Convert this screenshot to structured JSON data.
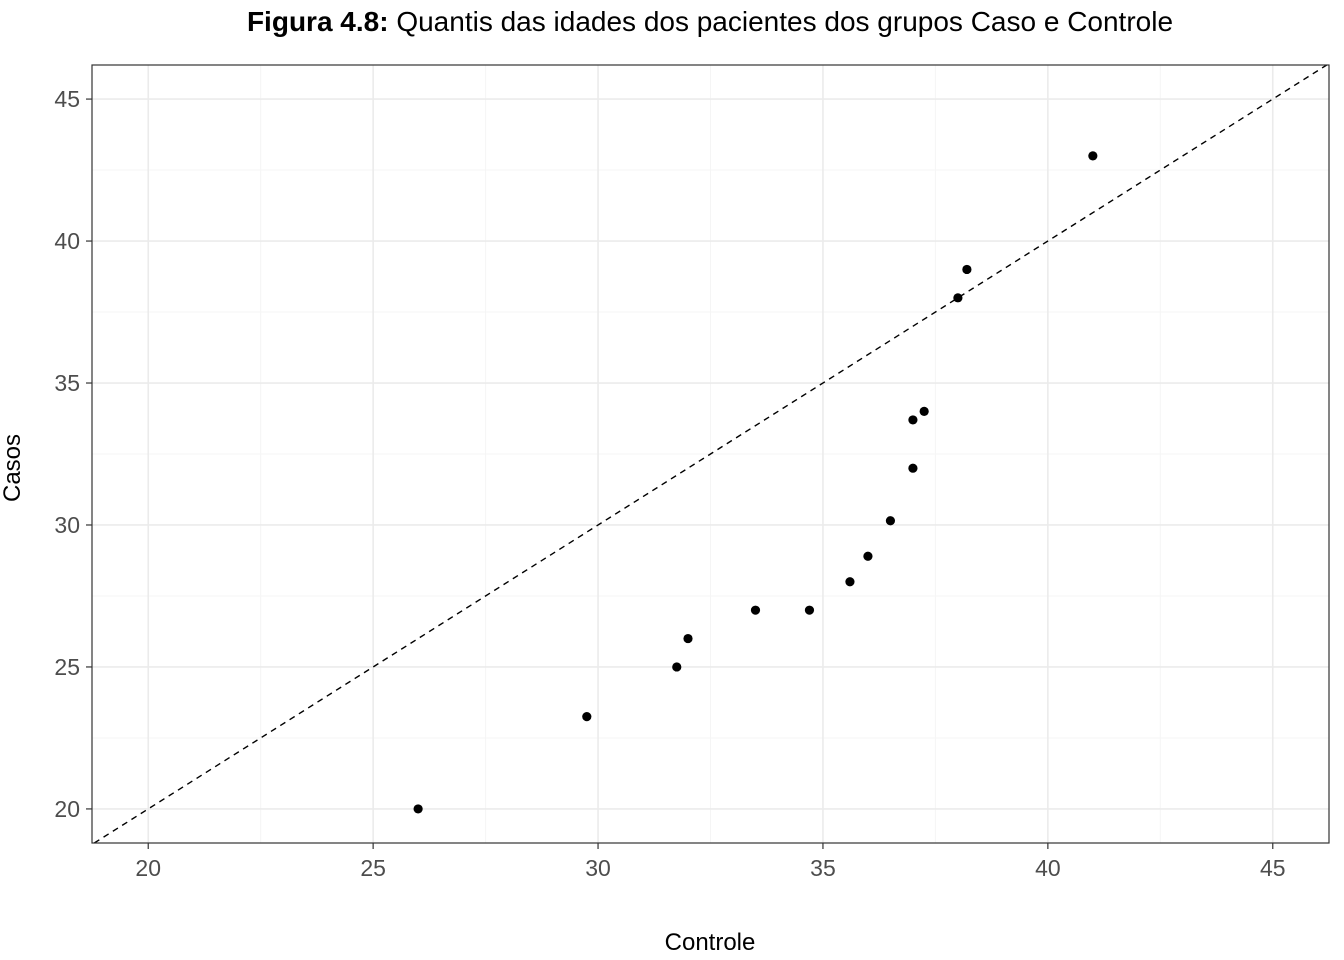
{
  "chart_data": {
    "type": "scatter",
    "title_prefix": "Figura 4.8:",
    "title_text": " Quantis das idades dos pacientes dos grupos Caso e Controle",
    "xlabel": "Controle",
    "ylabel": "Casos",
    "xlim": [
      18.75,
      46.25
    ],
    "ylim": [
      18.8,
      46.2
    ],
    "xticks": [
      20,
      25,
      30,
      35,
      40,
      45
    ],
    "xtick_labels": [
      "20",
      "25",
      "30",
      "35",
      "40",
      "45"
    ],
    "yticks": [
      20,
      25,
      30,
      35,
      40,
      45
    ],
    "ytick_labels": [
      "20",
      "25",
      "30",
      "35",
      "40",
      "45"
    ],
    "grid": true,
    "reference_line": "y = x (dashed)",
    "series": [
      {
        "x": [
          26.0,
          29.75,
          31.75,
          32.0,
          33.5,
          34.7,
          35.6,
          36.0,
          36.5,
          37.0,
          37.0,
          37.25,
          38.0,
          38.2,
          41.0
        ],
        "y": [
          20.0,
          23.25,
          25.0,
          26.0,
          27.0,
          27.0,
          28.0,
          28.9,
          30.15,
          32.0,
          33.7,
          34.0,
          38.0,
          39.0,
          43.0
        ]
      }
    ],
    "colors": {
      "points": "#000000",
      "grid_major": "#ebebeb",
      "grid_minor": "#f5f5f5",
      "border": "#333333",
      "tick_text": "#4d4d4d"
    }
  }
}
